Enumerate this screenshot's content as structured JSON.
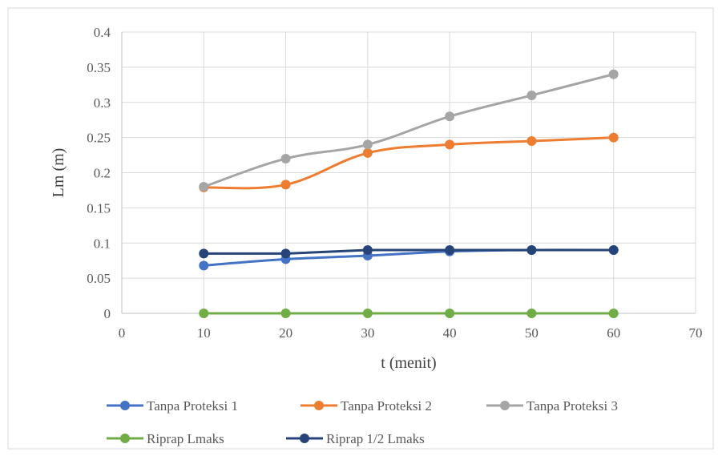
{
  "chart_data": {
    "type": "line",
    "title": "",
    "xlabel": "t (menit)",
    "ylabel": "Lm (m)",
    "xlim": [
      0,
      70
    ],
    "ylim": [
      0,
      0.4
    ],
    "x_ticks": [
      0,
      10,
      20,
      30,
      40,
      50,
      60,
      70
    ],
    "y_ticks": [
      0,
      0.05,
      0.1,
      0.15,
      0.2,
      0.25,
      0.3,
      0.35,
      0.4
    ],
    "x_tick_labels": [
      "0",
      "10",
      "20",
      "30",
      "40",
      "50",
      "60",
      "70"
    ],
    "y_tick_labels": [
      "0",
      "0.05",
      "0.1",
      "0.15",
      "0.2",
      "0.25",
      "0.3",
      "0.35",
      "0.4"
    ],
    "grid": true,
    "legend_position": "bottom",
    "x": [
      10,
      20,
      30,
      40,
      50,
      60
    ],
    "series": [
      {
        "name": "Tanpa Proteksi 1",
        "color": "#4472C4",
        "smooth": true,
        "values": [
          0.068,
          0.077,
          0.082,
          0.088,
          0.09,
          0.09
        ]
      },
      {
        "name": "Tanpa Proteksi 2",
        "color": "#ED7D31",
        "smooth": true,
        "values": [
          0.179,
          0.183,
          0.228,
          0.24,
          0.245,
          0.25
        ]
      },
      {
        "name": "Tanpa Proteksi 3",
        "color": "#A5A5A5",
        "smooth": true,
        "values": [
          0.18,
          0.22,
          0.24,
          0.28,
          0.31,
          0.34
        ]
      },
      {
        "name": "Riprap Lmaks",
        "color": "#70AD47",
        "smooth": false,
        "values": [
          0,
          0,
          0,
          0,
          0,
          0
        ]
      },
      {
        "name": "Riprap 1/2 Lmaks",
        "color": "#264478",
        "smooth": false,
        "values": [
          0.085,
          0.085,
          0.09,
          0.09,
          0.09,
          0.09
        ]
      }
    ]
  }
}
